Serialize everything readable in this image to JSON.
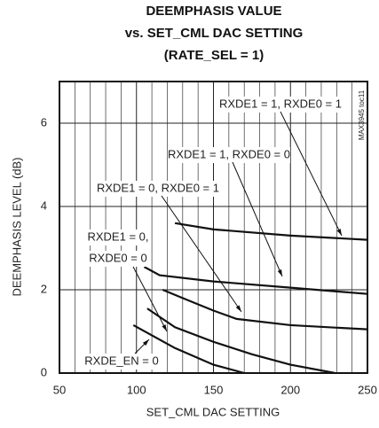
{
  "chart_data": {
    "type": "line",
    "title": [
      "DEEMPHASIS VALUE",
      "vs. SET_CML DAC SETTING",
      "(RATE_SEL = 1)"
    ],
    "x_label": "SET_CML DAC SETTING",
    "y_label": "DEEMPHASIS LEVEL (dB)",
    "side_note": "MAX3945 toc11",
    "xlim": [
      50,
      250
    ],
    "xticks": [
      50,
      100,
      150,
      200,
      250
    ],
    "x_minor_grid": [
      60,
      70,
      80,
      90,
      110,
      120,
      130,
      140,
      160,
      170,
      180,
      190,
      210,
      220,
      230,
      240
    ],
    "ylim": [
      0,
      7
    ],
    "yticks": [
      0,
      2,
      4,
      6
    ],
    "grid": true,
    "series": [
      {
        "name": "RXDE1 = 1, RXDE0 = 1",
        "color": "#111111",
        "x": [
          125,
          150,
          200,
          250
        ],
        "values": [
          3.6,
          3.45,
          3.3,
          3.2
        ]
      },
      {
        "name": "RXDE1 = 1, RXDE0 = 0",
        "color": "#111111",
        "x": [
          105,
          115,
          150,
          200,
          250
        ],
        "values": [
          2.55,
          2.35,
          2.2,
          2.05,
          1.9
        ]
      },
      {
        "name": "RXDE1 = 0, RXDE0 = 1",
        "color": "#111111",
        "x": [
          117,
          130,
          150,
          165,
          200,
          250
        ],
        "values": [
          2.0,
          1.8,
          1.5,
          1.3,
          1.15,
          1.05
        ]
      },
      {
        "name": "RXDE1 = 0, RXDE0 = 0",
        "color": "#111111",
        "x": [
          107,
          125,
          150,
          175,
          200,
          229
        ],
        "values": [
          1.55,
          1.1,
          0.75,
          0.45,
          0.2,
          0
        ]
      },
      {
        "name": "RXDE_EN = 0",
        "color": "#111111",
        "x": [
          98,
          125,
          150,
          170
        ],
        "values": [
          1.15,
          0.6,
          0.2,
          0
        ]
      }
    ],
    "annotations": [
      {
        "lines": [
          "RXDE1 = 1, RXDE0 = 1"
        ]
      },
      {
        "lines": [
          "RXDE1 = 1, RXDE0 = 0"
        ]
      },
      {
        "lines": [
          "RXDE1 = 0, RXDE0 = 1"
        ]
      },
      {
        "lines": [
          "RXDE1 = 0,",
          "RXDE0 = 0"
        ]
      },
      {
        "lines": [
          "RXDE_EN = 0"
        ]
      }
    ]
  }
}
